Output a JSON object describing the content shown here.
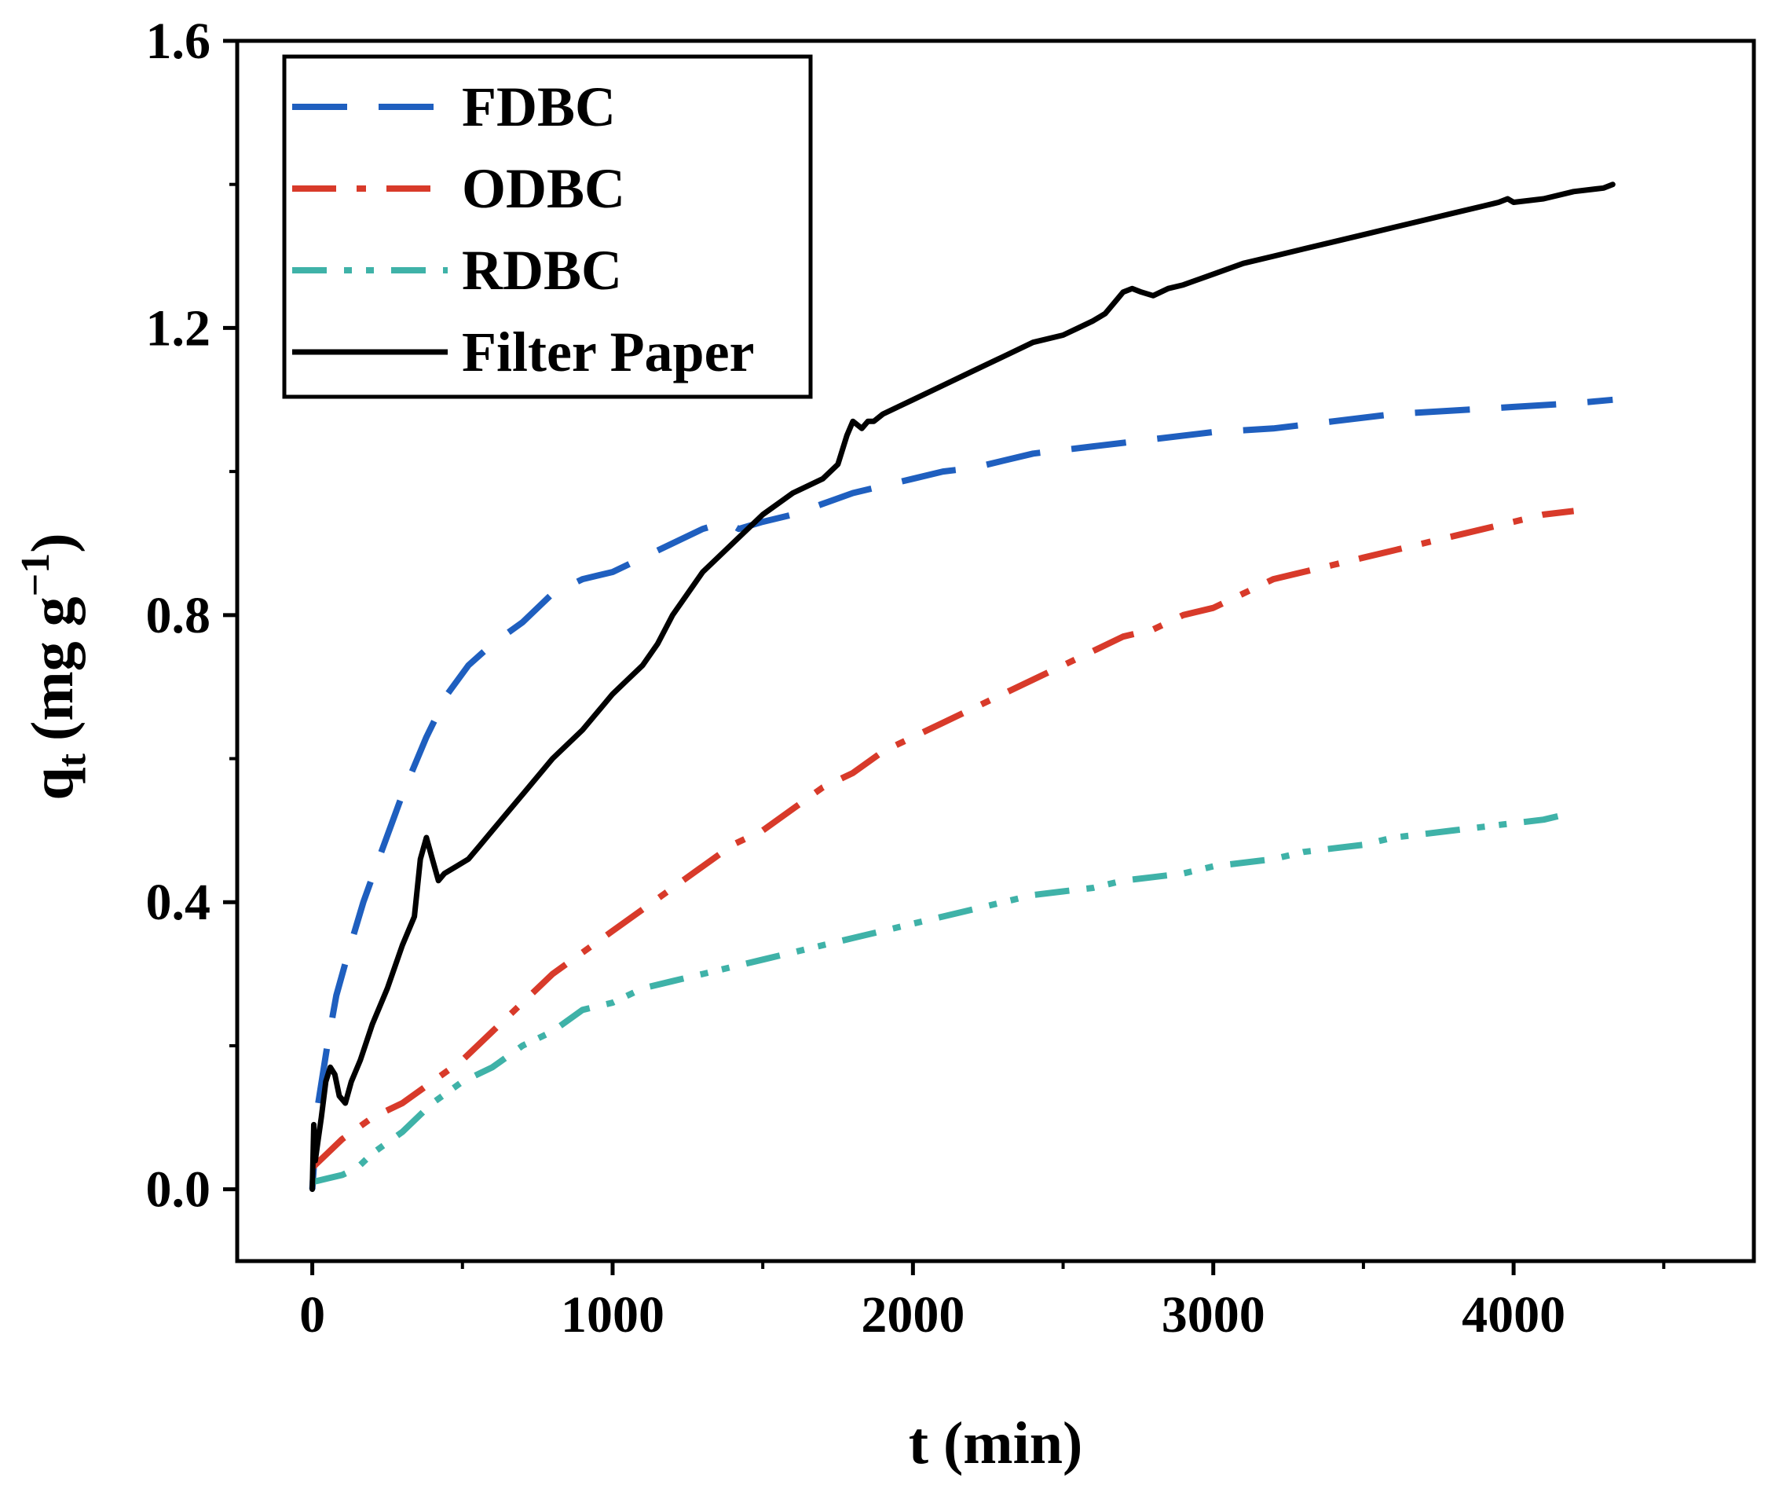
{
  "chart_data": {
    "type": "line",
    "title": "",
    "xlabel": "t (min)",
    "ylabel_main": "q",
    "ylabel_sub": "t",
    "ylabel_unit": "(mg g",
    "ylabel_sup": "−1",
    "ylabel_close": ")",
    "xlim": [
      -250,
      4800
    ],
    "ylim": [
      -0.1,
      1.6
    ],
    "xticks": [
      0,
      1000,
      2000,
      3000,
      4000
    ],
    "xtick_labels": [
      "0",
      "1000",
      "2000",
      "3000",
      "4000"
    ],
    "xminor": [
      500,
      1500,
      2500,
      3500,
      4500
    ],
    "yticks": [
      0.0,
      0.4,
      0.8,
      1.2,
      1.6
    ],
    "ytick_labels": [
      "0.0",
      "0.4",
      "0.8",
      "1.2",
      "1.6"
    ],
    "yminor": [
      0.2,
      0.6,
      1.0,
      1.4
    ],
    "legend_position": "top-left",
    "series": [
      {
        "name": "FDBC",
        "color": "#1f5fbf",
        "style": "dash",
        "x": [
          0,
          20,
          50,
          80,
          120,
          170,
          230,
          300,
          380,
          450,
          520,
          600,
          700,
          800,
          900,
          1000,
          1100,
          1200,
          1300,
          1380,
          1420,
          1500,
          1600,
          1700,
          1800,
          1900,
          2000,
          2100,
          2200,
          2300,
          2400,
          2500,
          2600,
          2700,
          2800,
          3000,
          3200,
          3400,
          3600,
          3800,
          4000,
          4200,
          4330
        ],
        "y": [
          0.0,
          0.12,
          0.2,
          0.27,
          0.33,
          0.4,
          0.47,
          0.55,
          0.63,
          0.69,
          0.73,
          0.76,
          0.79,
          0.83,
          0.85,
          0.86,
          0.88,
          0.9,
          0.92,
          0.93,
          0.92,
          0.93,
          0.94,
          0.955,
          0.97,
          0.98,
          0.99,
          1.0,
          1.005,
          1.015,
          1.025,
          1.03,
          1.035,
          1.04,
          1.045,
          1.055,
          1.06,
          1.07,
          1.08,
          1.085,
          1.09,
          1.095,
          1.1
        ]
      },
      {
        "name": "ODBC",
        "color": "#d83a2a",
        "style": "dashdot",
        "x": [
          0,
          50,
          100,
          200,
          300,
          400,
          500,
          600,
          700,
          800,
          900,
          1000,
          1100,
          1200,
          1300,
          1400,
          1500,
          1600,
          1700,
          1800,
          1900,
          2000,
          2100,
          2200,
          2300,
          2400,
          2500,
          2600,
          2700,
          2800,
          2900,
          3000,
          3100,
          3200,
          3300,
          3400,
          3500,
          3600,
          3700,
          3800,
          3900,
          4000,
          4100,
          4200
        ],
        "y": [
          0.03,
          0.05,
          0.07,
          0.1,
          0.12,
          0.15,
          0.18,
          0.22,
          0.26,
          0.3,
          0.33,
          0.36,
          0.39,
          0.42,
          0.45,
          0.48,
          0.5,
          0.53,
          0.56,
          0.58,
          0.61,
          0.63,
          0.65,
          0.67,
          0.69,
          0.71,
          0.73,
          0.75,
          0.77,
          0.78,
          0.8,
          0.81,
          0.83,
          0.85,
          0.86,
          0.87,
          0.88,
          0.89,
          0.9,
          0.91,
          0.92,
          0.93,
          0.94,
          0.945
        ]
      },
      {
        "name": "RDBC",
        "color": "#3fb2a8",
        "style": "dashdotdot",
        "x": [
          0,
          50,
          100,
          150,
          200,
          300,
          400,
          500,
          600,
          700,
          800,
          900,
          1000,
          1100,
          1200,
          1300,
          1400,
          1500,
          1600,
          1700,
          1800,
          1900,
          2000,
          2100,
          2200,
          2300,
          2400,
          2500,
          2600,
          2700,
          2800,
          2900,
          3000,
          3100,
          3200,
          3300,
          3400,
          3500,
          3600,
          3700,
          3800,
          3900,
          4000,
          4100,
          4150
        ],
        "y": [
          0.01,
          0.015,
          0.02,
          0.03,
          0.05,
          0.08,
          0.12,
          0.15,
          0.17,
          0.2,
          0.22,
          0.25,
          0.26,
          0.28,
          0.29,
          0.3,
          0.31,
          0.32,
          0.33,
          0.34,
          0.35,
          0.36,
          0.37,
          0.38,
          0.39,
          0.4,
          0.41,
          0.415,
          0.42,
          0.43,
          0.435,
          0.44,
          0.45,
          0.455,
          0.46,
          0.47,
          0.475,
          0.48,
          0.49,
          0.495,
          0.5,
          0.505,
          0.51,
          0.515,
          0.52
        ]
      },
      {
        "name": "Filter Paper",
        "color": "#000000",
        "style": "solid",
        "x": [
          0,
          5,
          10,
          20,
          30,
          45,
          60,
          75,
          90,
          110,
          130,
          160,
          200,
          250,
          300,
          340,
          360,
          380,
          400,
          420,
          440,
          480,
          520,
          560,
          600,
          700,
          800,
          900,
          1000,
          1050,
          1100,
          1150,
          1200,
          1300,
          1400,
          1500,
          1600,
          1700,
          1750,
          1780,
          1800,
          1830,
          1850,
          1870,
          1900,
          1950,
          2000,
          2100,
          2200,
          2300,
          2400,
          2500,
          2550,
          2600,
          2640,
          2680,
          2700,
          2730,
          2760,
          2800,
          2850,
          2900,
          3000,
          3100,
          3200,
          3300,
          3400,
          3500,
          3600,
          3700,
          3800,
          3900,
          3950,
          3980,
          4000,
          4100,
          4200,
          4300,
          4330
        ],
        "y": [
          0.0,
          0.09,
          0.04,
          0.07,
          0.1,
          0.15,
          0.17,
          0.16,
          0.13,
          0.12,
          0.15,
          0.18,
          0.23,
          0.28,
          0.34,
          0.38,
          0.46,
          0.49,
          0.46,
          0.43,
          0.44,
          0.45,
          0.46,
          0.48,
          0.5,
          0.55,
          0.6,
          0.64,
          0.69,
          0.71,
          0.73,
          0.76,
          0.8,
          0.86,
          0.9,
          0.94,
          0.97,
          0.99,
          1.01,
          1.05,
          1.07,
          1.06,
          1.07,
          1.07,
          1.08,
          1.09,
          1.1,
          1.12,
          1.14,
          1.16,
          1.18,
          1.19,
          1.2,
          1.21,
          1.22,
          1.24,
          1.25,
          1.255,
          1.25,
          1.245,
          1.255,
          1.26,
          1.275,
          1.29,
          1.3,
          1.31,
          1.32,
          1.33,
          1.34,
          1.35,
          1.36,
          1.37,
          1.375,
          1.38,
          1.375,
          1.38,
          1.39,
          1.395,
          1.4
        ]
      }
    ]
  }
}
